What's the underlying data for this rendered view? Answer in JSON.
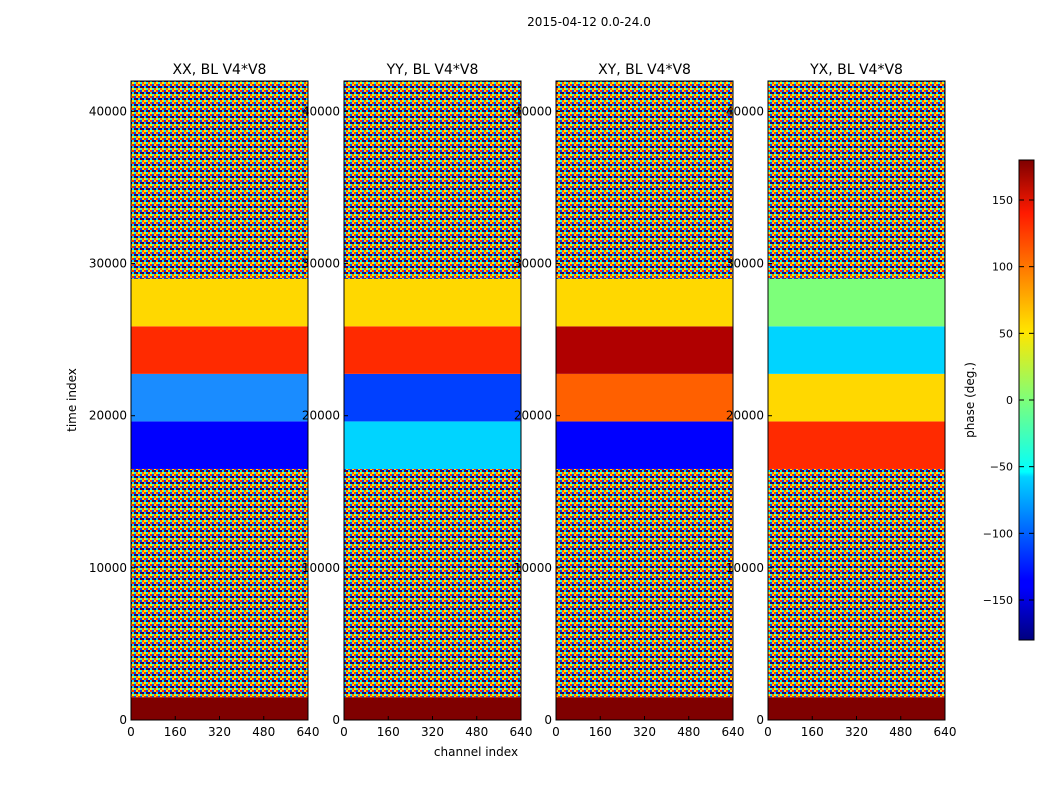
{
  "figure": {
    "suptitle": "2015-04-12 0.0-24.0",
    "xlabel": "channel index",
    "ylabel": "time index",
    "colorbar_label": "phase (deg.)"
  },
  "chart_data": {
    "type": "heatmap",
    "panels": [
      {
        "title": "XX, BL V4*V8"
      },
      {
        "title": "YY, BL V4*V8"
      },
      {
        "title": "XY, BL V4*V8"
      },
      {
        "title": "YX, BL V4*V8"
      }
    ],
    "xlim": [
      0,
      640
    ],
    "ylim": [
      0,
      42000
    ],
    "xticks": [
      0,
      160,
      320,
      480,
      640
    ],
    "yticks": [
      0,
      10000,
      20000,
      30000,
      40000
    ],
    "colorbar": {
      "range": [
        -180,
        180
      ],
      "ticks": [
        -150,
        -100,
        -50,
        0,
        50,
        100,
        150
      ],
      "colormap": "jet"
    }
  }
}
